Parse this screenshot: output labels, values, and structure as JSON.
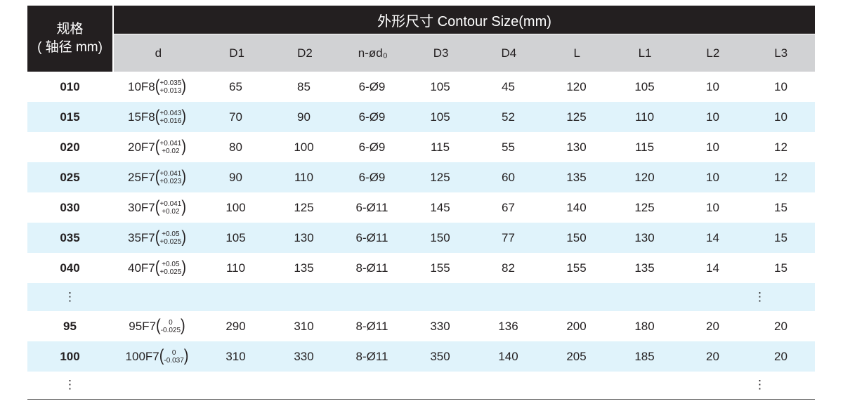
{
  "header": {
    "spec_title": "规格",
    "spec_unit": "( 轴径 mm)",
    "group_title": "外形尺寸 Contour Size(mm)",
    "columns": [
      "d",
      "D1",
      "D2",
      "n-ød₀",
      "D3",
      "D4",
      "L",
      "L1",
      "L2",
      "L3"
    ]
  },
  "rows": [
    {
      "spec": "010",
      "d": "10F8",
      "up": "+0.035",
      "lo": "+0.013",
      "v": [
        "65",
        "85",
        "6-Ø9",
        "105",
        "45",
        "120",
        "105",
        "10",
        "10"
      ]
    },
    {
      "spec": "015",
      "d": "15F8",
      "up": "+0.043",
      "lo": "+0.016",
      "v": [
        "70",
        "90",
        "6-Ø9",
        "105",
        "52",
        "125",
        "110",
        "10",
        "10"
      ]
    },
    {
      "spec": "020",
      "d": "20F7",
      "up": "+0.041",
      "lo": "+0.02",
      "v": [
        "80",
        "100",
        "6-Ø9",
        "115",
        "55",
        "130",
        "115",
        "10",
        "12"
      ]
    },
    {
      "spec": "025",
      "d": "25F7",
      "up": "+0.041",
      "lo": "+0.023",
      "v": [
        "90",
        "110",
        "6-Ø9",
        "125",
        "60",
        "135",
        "120",
        "10",
        "12"
      ]
    },
    {
      "spec": "030",
      "d": "30F7",
      "up": "+0.041",
      "lo": "+0.02",
      "v": [
        "100",
        "125",
        "6-Ø11",
        "145",
        "67",
        "140",
        "125",
        "10",
        "15"
      ]
    },
    {
      "spec": "035",
      "d": "35F7",
      "up": "+0.05",
      "lo": "+0.025",
      "v": [
        "105",
        "130",
        "6-Ø11",
        "150",
        "77",
        "150",
        "130",
        "14",
        "15"
      ]
    },
    {
      "spec": "040",
      "d": "40F7",
      "up": "+0.05",
      "lo": "+0.025",
      "v": [
        "110",
        "135",
        "8-Ø11",
        "155",
        "82",
        "155",
        "135",
        "14",
        "15"
      ]
    },
    {
      "ellipsis": "⋮"
    },
    {
      "spec": "95",
      "d": "95F7",
      "up": "0",
      "lo": "-0.025",
      "v": [
        "290",
        "310",
        "8-Ø11",
        "330",
        "136",
        "200",
        "180",
        "20",
        "20"
      ]
    },
    {
      "spec": "100",
      "d": "100F7",
      "up": "0",
      "lo": "-0.037",
      "v": [
        "310",
        "330",
        "8-Ø11",
        "350",
        "140",
        "205",
        "185",
        "20",
        "20"
      ]
    },
    {
      "ellipsis": "⋮"
    }
  ],
  "colors": {
    "header_bg": "#231f20",
    "subheader_bg": "#d1d2d4",
    "stripe": "#e0f3fb"
  }
}
